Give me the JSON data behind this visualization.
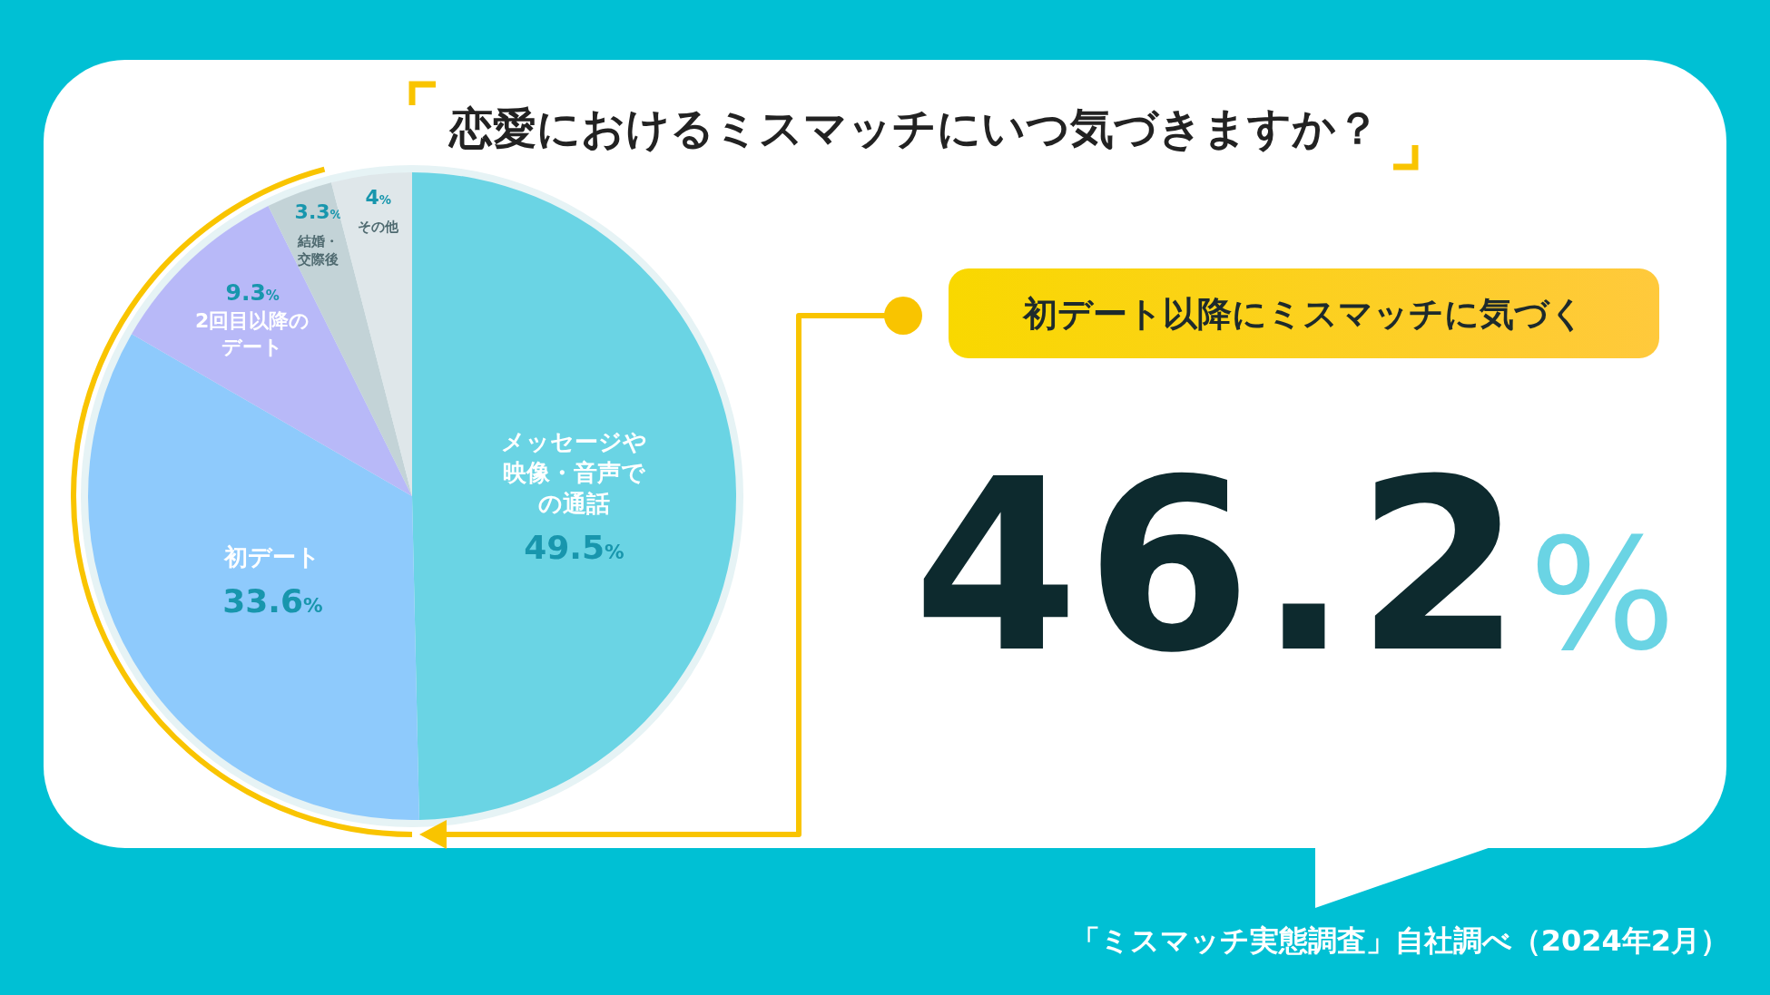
{
  "chart_data": {
    "type": "pie",
    "title": "恋愛におけるミスマッチにいつ気づきますか？",
    "categories": [
      "メッセージや映像・音声での通話",
      "初デート",
      "2回目以降のデート",
      "結婚・交際後",
      "その他"
    ],
    "values": [
      49.5,
      33.6,
      9.3,
      3.3,
      4
    ],
    "colors": [
      "#6ad4e4",
      "#8ecafc",
      "#b8b9f8",
      "#c3d3d7",
      "#dfe7ea"
    ],
    "value_labels": [
      "49.5%",
      "33.6%",
      "9.3%",
      "3.3%",
      "4%"
    ],
    "annotations": [
      "初デート以降にミスマッチに気づく",
      "46.2%",
      "「ミスマッチ実態調査」自社調べ（2024年2月）"
    ]
  }
}
